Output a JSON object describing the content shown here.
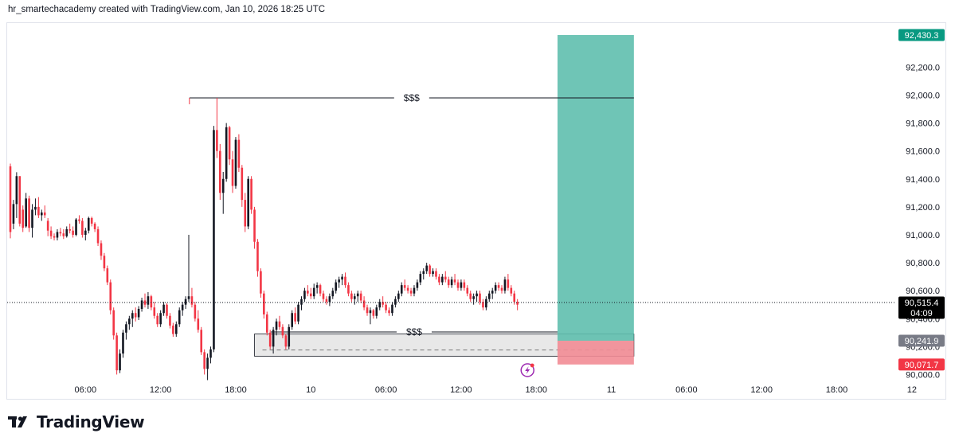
{
  "header": {
    "attribution": "hr_smartechacademy created with TradingView.com, Jan 10, 2026 18:25 UTC"
  },
  "brand": {
    "logo_text": "TradingView"
  },
  "colors": {
    "bull": "#131722",
    "bear": "#f23645",
    "target_zone": "#5fbfae",
    "stop_zone": "#f28c95",
    "zone_box": "#e8e8e8",
    "last_price_tag": "#000000",
    "target_tag": "#089981",
    "stop_tag": "#f23645",
    "entry_tag": "#787b86"
  },
  "chart_data": {
    "type": "candlestick",
    "title": "",
    "xlabel": "",
    "ylabel": "",
    "ylim": [
      89950,
      92650
    ],
    "y_ticks": [
      90000,
      90200,
      90400,
      90600,
      90800,
      91000,
      91200,
      91400,
      91600,
      91800,
      92000,
      92200
    ],
    "y_tick_labels": [
      "90,000.0",
      "90,200.0",
      "90,400.0",
      "90,600.0",
      "90,800.0",
      "91,000.0",
      "91,200.0",
      "91,400.0",
      "91,600.0",
      "91,800.0",
      "92,000.0",
      "92,200.0"
    ],
    "x_ticks": [
      {
        "hour": 6,
        "label": "06:00"
      },
      {
        "hour": 12,
        "label": "12:00"
      },
      {
        "hour": 18,
        "label": "18:00"
      },
      {
        "hour": 24,
        "label": "10"
      },
      {
        "hour": 30,
        "label": "06:00"
      },
      {
        "hour": 36,
        "label": "12:00"
      },
      {
        "hour": 42,
        "label": "18:00"
      },
      {
        "hour": 48,
        "label": "11"
      },
      {
        "hour": 54,
        "label": "06:00"
      },
      {
        "hour": 60,
        "label": "12:00"
      },
      {
        "hour": 66,
        "label": "18:00"
      },
      {
        "hour": 72,
        "label": "12"
      }
    ],
    "x_unit": "hours since Jan 9 00:00 UTC",
    "candle_interval_hours": 0.25,
    "last_price": 90515.4,
    "last_price_label": "90,515.4",
    "countdown": "04:09",
    "position": {
      "type": "long",
      "start_hour": 43.7,
      "end_hour": 49.8,
      "entry": 90241.9,
      "entry_label": "90,241.9",
      "target": 92430.3,
      "target_label": "92,430.3",
      "stop": 90071.7,
      "stop_label": "90,071.7"
    },
    "levels": [
      {
        "label": "$$$",
        "price": 91980,
        "start_hour": 14.3,
        "end_hour": 49.8
      },
      {
        "label": "$$$",
        "price": 90305,
        "start_hour": 20.8,
        "end_hour": 43.7
      }
    ],
    "zone": {
      "start_hour": 19.5,
      "end_hour": 49.8,
      "top": 90290,
      "bottom": 90131,
      "mid": 90175
    },
    "marker": {
      "hour": 41.3,
      "icon": "lightning-bolt-icon"
    },
    "candles": [
      [
        0.0,
        91490,
        91510,
        90975,
        91020
      ],
      [
        0.25,
        91080,
        91250,
        91040,
        91220
      ],
      [
        0.5,
        91220,
        91448,
        91120,
        91420
      ],
      [
        0.75,
        91420,
        91420,
        91060,
        91080
      ],
      [
        1.0,
        91180,
        91210,
        91020,
        91050
      ],
      [
        1.25,
        91060,
        91300,
        91050,
        91260
      ],
      [
        1.5,
        91260,
        91280,
        91020,
        91050
      ],
      [
        1.75,
        91050,
        91220,
        90980,
        91180
      ],
      [
        2.0,
        91180,
        91260,
        91140,
        91200
      ],
      [
        2.25,
        91200,
        91270,
        91120,
        91140
      ],
      [
        2.5,
        91140,
        91180,
        91100,
        91160
      ],
      [
        2.75,
        91160,
        91210,
        91120,
        91140
      ],
      [
        3.0,
        91100,
        91120,
        90990,
        91030
      ],
      [
        3.25,
        91030,
        91060,
        90970,
        90990
      ],
      [
        3.5,
        90990,
        91010,
        90960,
        90980
      ],
      [
        3.75,
        90980,
        91040,
        90960,
        91020
      ],
      [
        4.0,
        91020,
        91050,
        90990,
        91010
      ],
      [
        4.25,
        91010,
        91040,
        90970,
        90990
      ],
      [
        4.5,
        90990,
        91060,
        90980,
        91040
      ],
      [
        4.75,
        91040,
        91080,
        91010,
        91030
      ],
      [
        5.0,
        91030,
        91060,
        90980,
        91000
      ],
      [
        5.25,
        91000,
        91120,
        90990,
        91110
      ],
      [
        5.5,
        91110,
        91140,
        91080,
        91100
      ],
      [
        5.75,
        91100,
        91120,
        90980,
        91000
      ],
      [
        6.0,
        91000,
        91050,
        90960,
        91030
      ],
      [
        6.25,
        91030,
        91130,
        91010,
        91120
      ],
      [
        6.5,
        91120,
        91130,
        91060,
        91080
      ],
      [
        6.75,
        91080,
        91090,
        91020,
        91040
      ],
      [
        7.0,
        91040,
        91060,
        90920,
        90940
      ],
      [
        7.25,
        90940,
        90960,
        90820,
        90850
      ],
      [
        7.5,
        90850,
        90870,
        90740,
        90760
      ],
      [
        7.75,
        90760,
        90780,
        90640,
        90660
      ],
      [
        8.0,
        90660,
        90680,
        90430,
        90460
      ],
      [
        8.25,
        90460,
        90480,
        90250,
        90280
      ],
      [
        8.5,
        90280,
        90300,
        90000,
        90030
      ],
      [
        8.75,
        90030,
        90180,
        90010,
        90150
      ],
      [
        9.0,
        90150,
        90320,
        90120,
        90300
      ],
      [
        9.25,
        90300,
        90380,
        90250,
        90360
      ],
      [
        9.5,
        90360,
        90420,
        90320,
        90400
      ],
      [
        9.75,
        90400,
        90460,
        90340,
        90440
      ],
      [
        10.0,
        90440,
        90480,
        90380,
        90410
      ],
      [
        10.25,
        90410,
        90490,
        90390,
        90470
      ],
      [
        10.5,
        90470,
        90550,
        90450,
        90530
      ],
      [
        10.75,
        90530,
        90580,
        90480,
        90500
      ],
      [
        11.0,
        90500,
        90590,
        90470,
        90560
      ],
      [
        11.25,
        90560,
        90570,
        90460,
        90480
      ],
      [
        11.5,
        90480,
        90520,
        90400,
        90420
      ],
      [
        11.75,
        90420,
        90440,
        90340,
        90360
      ],
      [
        12.0,
        90360,
        90460,
        90340,
        90440
      ],
      [
        12.25,
        90440,
        90520,
        90420,
        90500
      ],
      [
        12.5,
        90500,
        90510,
        90400,
        90420
      ],
      [
        12.75,
        90420,
        90440,
        90330,
        90350
      ],
      [
        13.0,
        90350,
        90370,
        90270,
        90290
      ],
      [
        13.25,
        90290,
        90380,
        90270,
        90360
      ],
      [
        13.5,
        90360,
        90480,
        90340,
        90460
      ],
      [
        13.75,
        90460,
        90520,
        90420,
        90500
      ],
      [
        14.0,
        90500,
        90560,
        90470,
        90540
      ],
      [
        14.25,
        90540,
        91000,
        90520,
        90560
      ],
      [
        14.5,
        90560,
        90620,
        90480,
        90500
      ],
      [
        14.75,
        90500,
        90520,
        90380,
        90400
      ],
      [
        15.0,
        90400,
        90460,
        90300,
        90320
      ],
      [
        15.25,
        90320,
        90340,
        90140,
        90160
      ],
      [
        15.5,
        90160,
        90180,
        90000,
        90040
      ],
      [
        15.75,
        90040,
        90150,
        89960,
        90120
      ],
      [
        16.0,
        90120,
        90200,
        90080,
        90180
      ],
      [
        16.25,
        90180,
        91780,
        90160,
        91750
      ],
      [
        16.5,
        91750,
        91980,
        91550,
        91600
      ],
      [
        16.75,
        91600,
        91650,
        91250,
        91300
      ],
      [
        17.0,
        91300,
        91450,
        91150,
        91400
      ],
      [
        17.25,
        91400,
        91800,
        91380,
        91770
      ],
      [
        17.5,
        91770,
        91780,
        91500,
        91540
      ],
      [
        17.75,
        91540,
        91600,
        91300,
        91350
      ],
      [
        18.0,
        91350,
        91700,
        91330,
        91680
      ],
      [
        18.25,
        91680,
        91720,
        91450,
        91480
      ],
      [
        18.5,
        91480,
        91500,
        91200,
        91250
      ],
      [
        18.75,
        91250,
        91300,
        91020,
        91060
      ],
      [
        19.0,
        91060,
        91420,
        91040,
        91400
      ],
      [
        19.25,
        91400,
        91420,
        91150,
        91180
      ],
      [
        19.5,
        91180,
        91200,
        90900,
        90950
      ],
      [
        19.75,
        90950,
        90970,
        90700,
        90740
      ],
      [
        20.0,
        90740,
        90760,
        90550,
        90580
      ],
      [
        20.25,
        90580,
        90600,
        90400,
        90430
      ],
      [
        20.5,
        90430,
        90450,
        90280,
        90300
      ],
      [
        20.75,
        90300,
        90320,
        90180,
        90200
      ],
      [
        21.0,
        90200,
        90340,
        90150,
        90320
      ],
      [
        21.25,
        90320,
        90400,
        90280,
        90380
      ],
      [
        21.5,
        90380,
        90420,
        90320,
        90340
      ],
      [
        21.75,
        90340,
        90360,
        90260,
        90280
      ],
      [
        22.0,
        90280,
        90290,
        90180,
        90200
      ],
      [
        22.25,
        90200,
        90360,
        90180,
        90340
      ],
      [
        22.5,
        90340,
        90460,
        90320,
        90440
      ],
      [
        22.75,
        90440,
        90480,
        90360,
        90380
      ],
      [
        23.0,
        90380,
        90520,
        90360,
        90500
      ],
      [
        23.25,
        90500,
        90560,
        90460,
        90540
      ],
      [
        23.5,
        90540,
        90620,
        90520,
        90600
      ],
      [
        23.75,
        90600,
        90640,
        90560,
        90580
      ],
      [
        24.0,
        90580,
        90620,
        90540,
        90560
      ],
      [
        24.25,
        90560,
        90650,
        90540,
        90620
      ],
      [
        24.5,
        90620,
        90660,
        90580,
        90640
      ],
      [
        24.75,
        90640,
        90650,
        90560,
        90580
      ],
      [
        25.0,
        90580,
        90600,
        90520,
        90540
      ],
      [
        25.25,
        90540,
        90560,
        90500,
        90520
      ],
      [
        25.5,
        90520,
        90580,
        90490,
        90560
      ],
      [
        25.75,
        90560,
        90620,
        90540,
        90600
      ],
      [
        26.0,
        90600,
        90680,
        90580,
        90660
      ],
      [
        26.25,
        90660,
        90700,
        90620,
        90680
      ],
      [
        26.5,
        90680,
        90720,
        90640,
        90700
      ],
      [
        26.75,
        90700,
        90730,
        90620,
        90640
      ],
      [
        27.0,
        90640,
        90660,
        90560,
        90580
      ],
      [
        27.25,
        90580,
        90600,
        90520,
        90540
      ],
      [
        27.5,
        90540,
        90580,
        90500,
        90560
      ],
      [
        27.75,
        90560,
        90600,
        90520,
        90580
      ],
      [
        28.0,
        90580,
        90600,
        90510,
        90530
      ],
      [
        28.25,
        90530,
        90560,
        90460,
        90480
      ],
      [
        28.5,
        90480,
        90500,
        90420,
        90440
      ],
      [
        28.75,
        90440,
        90480,
        90360,
        90460
      ],
      [
        29.0,
        90460,
        90470,
        90400,
        90420
      ],
      [
        29.25,
        90420,
        90500,
        90400,
        90480
      ],
      [
        29.5,
        90480,
        90540,
        90460,
        90520
      ],
      [
        29.75,
        90520,
        90560,
        90480,
        90500
      ],
      [
        30.0,
        90500,
        90520,
        90440,
        90460
      ],
      [
        30.25,
        90460,
        90480,
        90420,
        90440
      ],
      [
        30.5,
        90440,
        90520,
        90420,
        90500
      ],
      [
        30.75,
        90500,
        90560,
        90480,
        90540
      ],
      [
        31.0,
        90540,
        90600,
        90520,
        90580
      ],
      [
        31.25,
        90580,
        90660,
        90560,
        90640
      ],
      [
        31.5,
        90640,
        90680,
        90600,
        90620
      ],
      [
        31.75,
        90620,
        90640,
        90580,
        90600
      ],
      [
        32.0,
        90600,
        90620,
        90560,
        90580
      ],
      [
        32.25,
        90580,
        90640,
        90560,
        90620
      ],
      [
        32.5,
        90620,
        90680,
        90600,
        90660
      ],
      [
        32.75,
        90660,
        90740,
        90640,
        90720
      ],
      [
        33.0,
        90720,
        90760,
        90680,
        90740
      ],
      [
        33.25,
        90740,
        90800,
        90720,
        90780
      ],
      [
        33.5,
        90780,
        90790,
        90700,
        90720
      ],
      [
        33.75,
        90720,
        90760,
        90700,
        90740
      ],
      [
        34.0,
        90740,
        90760,
        90680,
        90700
      ],
      [
        34.25,
        90700,
        90720,
        90640,
        90660
      ],
      [
        34.5,
        90660,
        90720,
        90640,
        90700
      ],
      [
        34.75,
        90700,
        90740,
        90660,
        90680
      ],
      [
        35.0,
        90680,
        90700,
        90620,
        90640
      ],
      [
        35.25,
        90640,
        90700,
        90620,
        90680
      ],
      [
        35.5,
        90680,
        90720,
        90640,
        90660
      ],
      [
        35.75,
        90660,
        90680,
        90600,
        90620
      ],
      [
        36.0,
        90620,
        90680,
        90600,
        90660
      ],
      [
        36.25,
        90660,
        90680,
        90600,
        90620
      ],
      [
        36.5,
        90620,
        90640,
        90560,
        90580
      ],
      [
        36.75,
        90580,
        90600,
        90520,
        90540
      ],
      [
        37.0,
        90540,
        90580,
        90500,
        90560
      ],
      [
        37.25,
        90560,
        90600,
        90520,
        90580
      ],
      [
        37.5,
        90580,
        90600,
        90500,
        90520
      ],
      [
        37.75,
        90520,
        90540,
        90460,
        90480
      ],
      [
        38.0,
        90480,
        90560,
        90460,
        90540
      ],
      [
        38.25,
        90540,
        90600,
        90520,
        90580
      ],
      [
        38.5,
        90580,
        90620,
        90540,
        90600
      ],
      [
        38.75,
        90600,
        90660,
        90580,
        90640
      ],
      [
        39.0,
        90640,
        90660,
        90600,
        90620
      ],
      [
        39.25,
        90620,
        90640,
        90580,
        90600
      ],
      [
        39.5,
        90600,
        90700,
        90580,
        90680
      ],
      [
        39.75,
        90680,
        90720,
        90600,
        90620
      ],
      [
        40.0,
        90620,
        90640,
        90560,
        90580
      ],
      [
        40.25,
        90580,
        90600,
        90500,
        90520
      ],
      [
        40.5,
        90520,
        90540,
        90460,
        90500
      ]
    ]
  }
}
